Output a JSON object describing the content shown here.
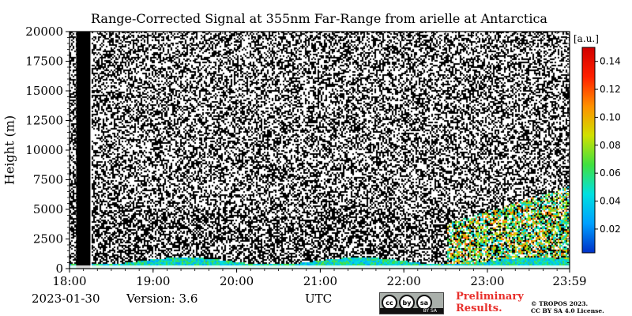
{
  "chart_data": {
    "type": "heatmap",
    "title": "Range-Corrected Signal at 355nm Far-Range from arielle at Antarctica",
    "ylabel": "Height (m)",
    "xlabel": "UTC",
    "x_ticks": [
      "18:00",
      "19:00",
      "20:00",
      "21:00",
      "22:00",
      "23:00",
      "23:59"
    ],
    "x_range_hours": [
      18.0,
      23.9833
    ],
    "y_ticks": [
      0,
      2500,
      5000,
      7500,
      10000,
      12500,
      15000,
      17500,
      20000
    ],
    "ylim": [
      0,
      20000
    ],
    "colorbar": {
      "unit": "[a.u.]",
      "ticks": [
        0.02,
        0.04,
        0.06,
        0.08,
        0.1,
        0.12,
        0.14
      ],
      "tick_labels": [
        "0.02",
        "0.04",
        "0.06",
        "0.08",
        "0.10",
        "0.12",
        "0.14"
      ],
      "range": [
        0.003,
        0.15
      ],
      "colormap": [
        "#0030c8",
        "#00a0ff",
        "#00e0e0",
        "#40e040",
        "#d0e000",
        "#ff9000",
        "#ff2000",
        "#d00000"
      ]
    },
    "no_data_interval_hours": [
      18.08,
      18.25
    ],
    "features": {
      "boundary_layer_top_m": 1000,
      "cloud_hours": [
        22.5,
        23.98
      ],
      "cloud_top_m": 7000
    },
    "grid": false
  },
  "footer": {
    "date": "2023-01-30",
    "version": "Version: 3.6",
    "utc_label": "UTC",
    "cc_labels": [
      "cc",
      "by",
      "sa"
    ],
    "cc_strip": "BY    SA",
    "preliminary_line1": "Preliminary",
    "preliminary_line2": "Results.",
    "copyright_line1": "© TROPOS 2023.",
    "copyright_line2": "CC BY SA 4.0 License."
  }
}
